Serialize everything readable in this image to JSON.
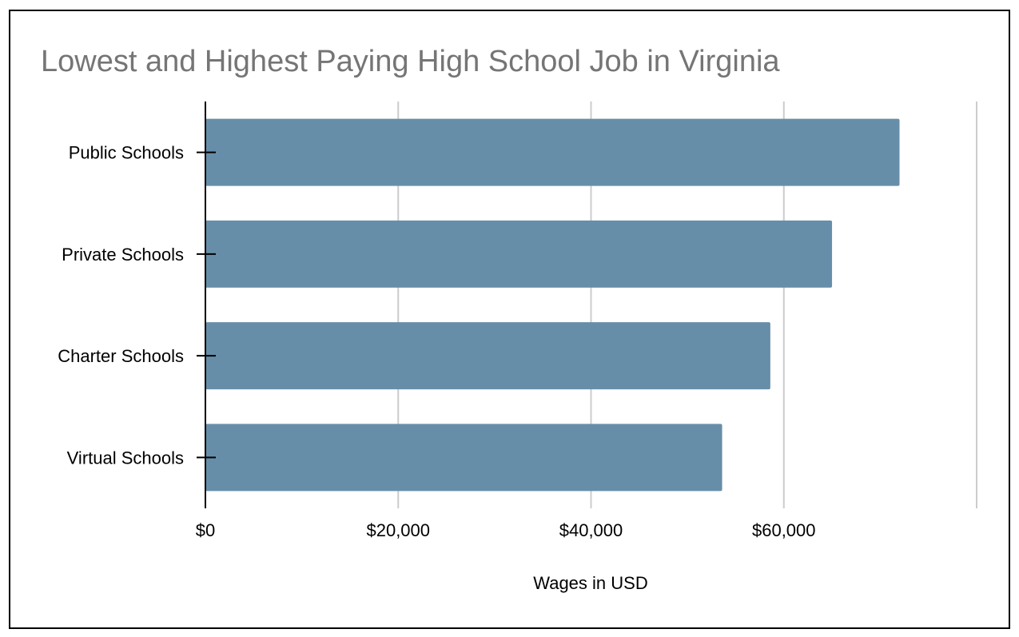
{
  "chart_data": {
    "type": "bar",
    "orientation": "horizontal",
    "title": "Lowest and Highest Paying High School Job in Virginia",
    "xlabel": "Wages in USD",
    "ylabel": "",
    "categories": [
      "Public Schools",
      "Private Schools",
      "Charter Schools",
      "Virtual Schools"
    ],
    "series": [
      {
        "values": [
          72000,
          65000,
          58600,
          53600
        ]
      }
    ],
    "xlim": [
      0,
      80000
    ],
    "x_ticks": [
      {
        "value": 0,
        "label": "$0"
      },
      {
        "value": 20000,
        "label": "$20,000"
      },
      {
        "value": 40000,
        "label": "$40,000"
      },
      {
        "value": 60000,
        "label": "$60,000"
      }
    ],
    "grid_lines_at": [
      20000,
      40000,
      60000,
      80000
    ],
    "grid": true,
    "legend": "none",
    "colors": {
      "bar": "#678ea9",
      "grid": "#cccccc",
      "axis": "#000000",
      "title": "#757575"
    }
  }
}
